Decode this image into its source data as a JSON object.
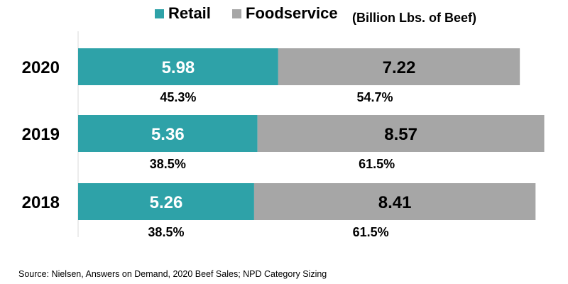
{
  "legend": {
    "retail": {
      "label": "Retail",
      "color": "#2ea2a8"
    },
    "foodservice": {
      "label": "Foodservice",
      "color": "#a6a6a6"
    }
  },
  "unit_label": "(Billion Lbs. of Beef)",
  "source": "Source: Nielsen, Answers on Demand, 2020 Beef Sales; NPD Category Sizing",
  "chart_data": {
    "type": "bar",
    "orientation": "horizontal",
    "stacked": true,
    "categories": [
      "2020",
      "2019",
      "2018"
    ],
    "series": [
      {
        "name": "Retail",
        "color": "#2ea2a8",
        "values": [
          5.98,
          5.36,
          5.26
        ],
        "value_labels": [
          "5.98",
          "5.36",
          "5.26"
        ],
        "percent_labels": [
          "45.3%",
          "38.5%",
          "38.5%"
        ]
      },
      {
        "name": "Foodservice",
        "color": "#a6a6a6",
        "values": [
          7.22,
          8.57,
          8.41
        ],
        "value_labels": [
          "7.22",
          "8.57",
          "8.41"
        ],
        "percent_labels": [
          "54.7%",
          "61.5%",
          "61.5%"
        ]
      }
    ],
    "xlim": [
      0,
      14.3
    ],
    "grid": false,
    "legend_position": "top"
  }
}
